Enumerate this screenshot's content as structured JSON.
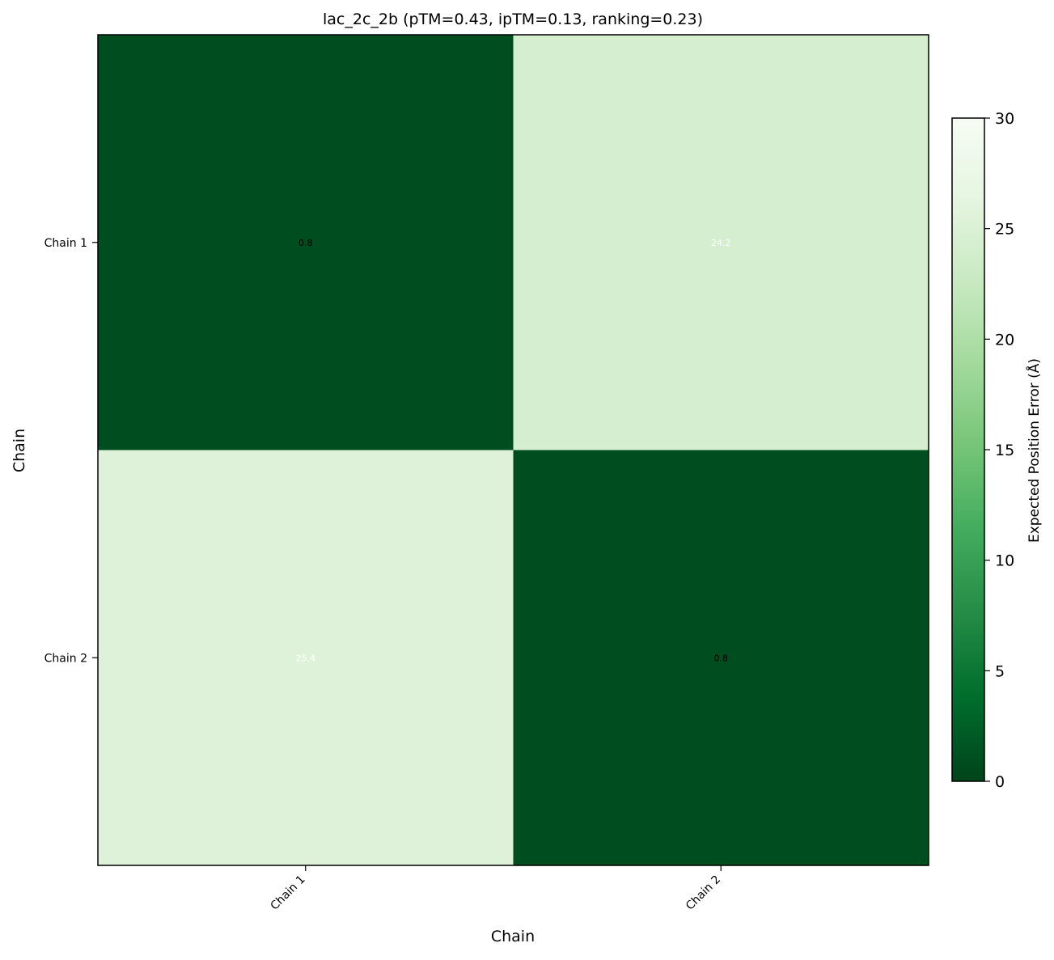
{
  "chart_data": {
    "type": "heatmap",
    "title": "lac_2c_2b (pTM=0.43, ipTM=0.13, ranking=0.23)",
    "xlabel": "Chain",
    "ylabel": "Chain",
    "x_categories": [
      "Chain 1",
      "Chain 2"
    ],
    "y_categories": [
      "Chain 1",
      "Chain 2"
    ],
    "values": [
      [
        0.8,
        24.2
      ],
      [
        25.4,
        0.8
      ]
    ],
    "cell_labels": [
      [
        "0.8",
        "24.2"
      ],
      [
        "25.4",
        "0.8"
      ]
    ],
    "colorbar": {
      "label": "Expected Position Error (Å)",
      "range": [
        0,
        30
      ],
      "ticks": [
        0,
        5,
        10,
        15,
        20,
        25,
        30
      ],
      "colormap": "Greens reversed",
      "colors": {
        "low": "#00441b",
        "high": "#f7fcf5"
      }
    },
    "grid": false
  }
}
